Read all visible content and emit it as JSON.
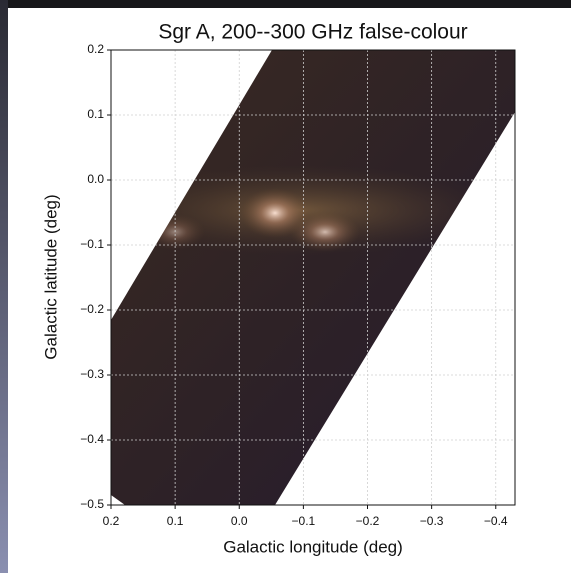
{
  "chart_data": {
    "type": "image",
    "title": "Sgr A, 200--300 GHz false-colour",
    "xlabel": "Galactic longitude (deg)",
    "ylabel": "Galactic latitude (deg)",
    "xlim": [
      0.2,
      -0.43
    ],
    "ylim": [
      -0.5,
      0.2
    ],
    "xticks": [
      0.2,
      0.1,
      {
        "value": 0.0,
        "label": "0.0"
      },
      {
        "value": -0.1,
        "label": "−0.1"
      },
      {
        "value": -0.2,
        "label": "−0.2"
      },
      {
        "value": -0.3,
        "label": "−0.3"
      },
      {
        "value": -0.4,
        "label": "−0.4"
      }
    ],
    "yticks": [
      0.2,
      0.1,
      {
        "value": 0.0,
        "label": "0.0"
      },
      {
        "value": -0.1,
        "label": "−0.1"
      },
      {
        "value": -0.2,
        "label": "−0.2"
      },
      {
        "value": -0.3,
        "label": "−0.3"
      },
      {
        "value": -0.4,
        "label": "−0.4"
      },
      {
        "value": -0.5,
        "label": "−0.5"
      }
    ],
    "grid": true
  }
}
